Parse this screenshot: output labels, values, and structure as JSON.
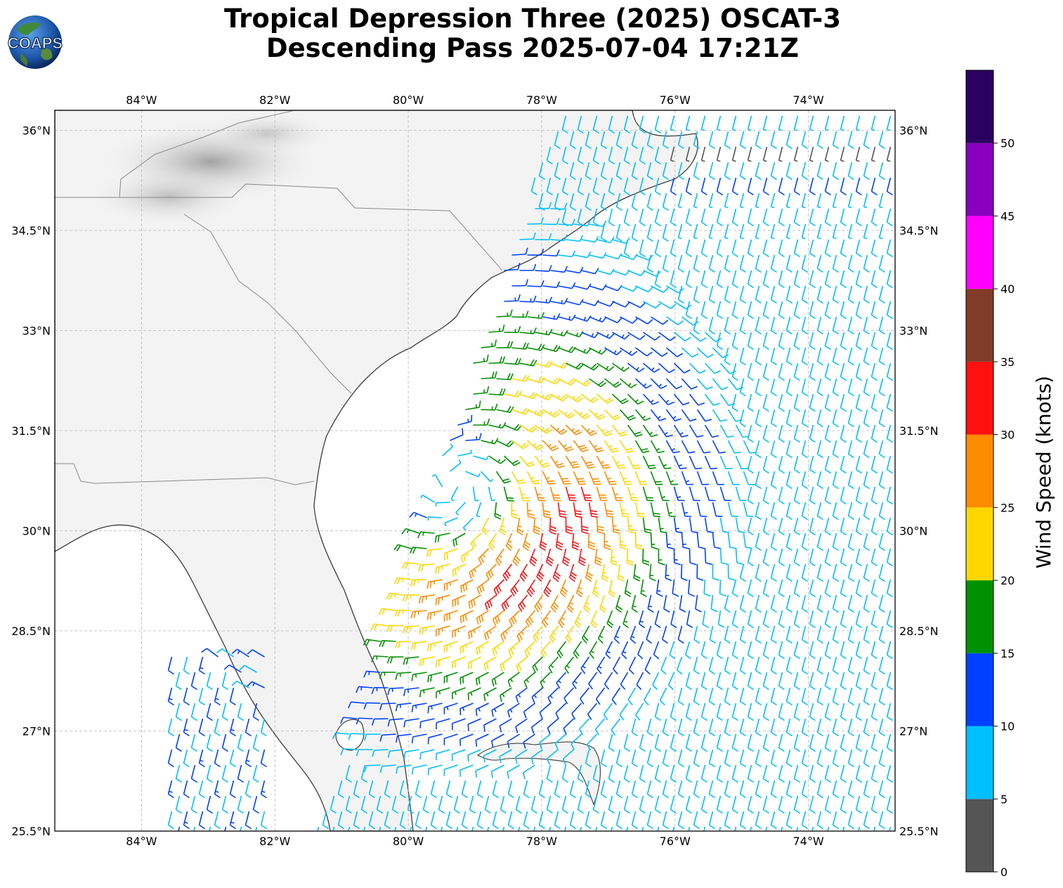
{
  "title": {
    "line1": "Tropical Depression Three (2025) OSCAT-3",
    "line2": "Descending Pass 2025-07-04 17:21Z"
  },
  "logo": {
    "text": "COAPS",
    "icon": "globe-logo"
  },
  "map": {
    "projection": "PlateCarree",
    "lon_range": [
      -85.3,
      -72.7
    ],
    "lat_range": [
      25.5,
      36.3
    ],
    "gridlines": true,
    "lon_ticks": [
      -84,
      -82,
      -80,
      -78,
      -76,
      -74
    ],
    "lon_tick_labels": [
      "84°W",
      "82°W",
      "80°W",
      "78°W",
      "76°W",
      "74°W"
    ],
    "lat_ticks": [
      36,
      34.5,
      33,
      31.5,
      30,
      28.5,
      27,
      25.5
    ],
    "lat_tick_labels": [
      "36°N",
      "34.5°N",
      "33°N",
      "31.5°N",
      "30°N",
      "28.5°N",
      "27°N",
      "25.5°N"
    ],
    "background": "grayscale satellite/terrain land shading, white ocean",
    "storm_center": {
      "lon": -79.3,
      "lat": 30.7
    },
    "max_wind_zone": {
      "lon": -78.0,
      "lat": 30.0
    }
  },
  "colorbar": {
    "label": "Wind Speed (knots)",
    "bounds": [
      0,
      5,
      10,
      15,
      20,
      25,
      30,
      35,
      40,
      45,
      50,
      55
    ],
    "tick_labels": [
      "0",
      "5",
      "10",
      "15",
      "20",
      "25",
      "30",
      "35",
      "40",
      "45",
      "50"
    ],
    "colors": [
      "#555555",
      "#00bfff",
      "#0040ff",
      "#009000",
      "#ffd700",
      "#ff8c00",
      "#ff1010",
      "#803c28",
      "#ff00ff",
      "#8800bb",
      "#2a0060"
    ]
  },
  "chart_data": {
    "type": "wind-barb-map",
    "variable": "wind speed",
    "units": "knots",
    "vortex": {
      "center_lon": -79.3,
      "center_lat": 30.7,
      "max_speed_kt": 35,
      "rotation": "cyclonic"
    }
  }
}
